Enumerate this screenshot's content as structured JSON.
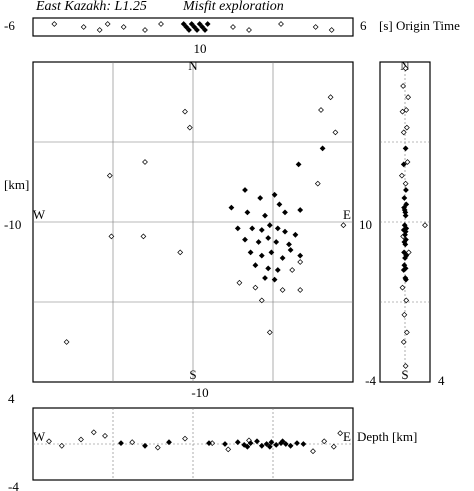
{
  "title": "East Kazakh: L1.25",
  "subtitle": "Misfit exploration",
  "chart_data": [
    {
      "type": "scatter",
      "xlabel": "[s] Origin Time",
      "xlim": [
        -6,
        6
      ],
      "xticks": [
        -6,
        6
      ],
      "series": [
        {
          "marker": "open",
          "color": "#000000",
          "x": [
            -5.2,
            -4.1,
            -3.5,
            -3.2,
            -2.6,
            -1.8,
            -1.2,
            1.5,
            2.1,
            3.3,
            4.6,
            5.2
          ]
        },
        {
          "marker": "filled",
          "color": "#000000",
          "x": [
            -0.35,
            -0.25,
            -0.15,
            -0.05,
            0.05,
            0.15,
            0.25,
            0.35,
            0.45,
            0.55
          ]
        }
      ]
    },
    {
      "type": "scatter",
      "ylabel": "[km]",
      "xlim": [
        -10,
        10
      ],
      "ylim": [
        -10,
        10
      ],
      "xticks": [
        -10,
        10
      ],
      "yticks": [
        10,
        -10
      ],
      "grid_x": [
        -5,
        0,
        5
      ],
      "grid_y": [
        -5,
        0,
        5
      ],
      "compass": [
        "N",
        "E",
        "S",
        "W"
      ],
      "series": [
        {
          "marker": "open",
          "color": "#000000",
          "x": [
            -0.5,
            -3,
            -5.2,
            -5.1,
            -3.1,
            -0.8,
            -7.9,
            -0.2,
            8.6,
            8.9,
            8,
            7.8,
            9.4,
            4.8,
            3.9,
            2.9,
            6.7,
            6.2,
            4.3,
            5.6,
            6.7
          ],
          "y": [
            6.9,
            3.75,
            2.9,
            -0.9,
            -0.9,
            -1.9,
            -7.5,
            5.9,
            7.8,
            5.6,
            7,
            2.4,
            -0.2,
            -6.9,
            -4.1,
            -3.8,
            -2.5,
            -3,
            -4.9,
            -4.25,
            -4.25
          ]
        },
        {
          "marker": "filled",
          "color": "#000000",
          "x": [
            8.1,
            6.6,
            3.25,
            4.2,
            5.1,
            5.4,
            2.4,
            3.4,
            4.5,
            5.75,
            6.7,
            2.8,
            3.7,
            4.3,
            4.8,
            5.3,
            5.75,
            6.4,
            3.25,
            4.1,
            4.7,
            5.2,
            6,
            3.6,
            4.3,
            4.9,
            5.6,
            3.9,
            4.7,
            5.3,
            6.1,
            5.1,
            4.5,
            6.7
          ],
          "y": [
            4.6,
            3.6,
            2,
            1.5,
            1.7,
            1.1,
            0.9,
            0.6,
            0.4,
            0.6,
            0.75,
            -0.4,
            -0.4,
            -0.5,
            -0.2,
            -0.4,
            -0.6,
            -0.8,
            -1.1,
            -1.25,
            -1,
            -1.25,
            -1.4,
            -1.9,
            -2.1,
            -1.9,
            -2.25,
            -2.7,
            -2.9,
            -3,
            -1.75,
            -3.6,
            -3.5,
            -2.1
          ]
        }
      ]
    },
    {
      "type": "scatter",
      "xlim": [
        -4,
        4
      ],
      "ylim": [
        -10,
        10
      ],
      "xticks": [
        -4,
        4
      ],
      "grid_x": [
        0
      ],
      "grid_y": [
        -5,
        0,
        5
      ],
      "compass": [
        "N",
        "S"
      ],
      "series": [
        {
          "marker": "open",
          "color": "#000000",
          "x": [
            0.1,
            -0.3,
            0.5,
            0.2,
            -0.4,
            0.3,
            -0.2,
            0.4,
            -0.5,
            0.1,
            3.2,
            -0.3,
            0.6,
            -0.4,
            0.2,
            -0.1,
            0.3,
            -0.2,
            0.1
          ],
          "y": [
            9.6,
            8.5,
            7.8,
            7,
            6.9,
            5.9,
            5.6,
            3.75,
            2.9,
            2.4,
            -0.2,
            -0.9,
            -1.9,
            -4.1,
            -4.9,
            -5.8,
            -6.9,
            -7.5,
            -9
          ]
        },
        {
          "marker": "filled",
          "color": "#000000",
          "x": [
            0.1,
            -0.2,
            0.15,
            -0.1,
            0.2,
            -0.15,
            0.05,
            0.1,
            -0.05,
            0.2,
            -0.2,
            0.1,
            0,
            0.15,
            -0.1,
            0.05,
            -0.15,
            0.2,
            0,
            -0.1,
            0.1,
            -0.2,
            0.05,
            0.15,
            -0.05
          ],
          "y": [
            4.6,
            3.6,
            2,
            1.5,
            1.1,
            0.9,
            0.6,
            0.4,
            -0.2,
            -0.4,
            -0.5,
            -0.6,
            -0.8,
            -1.1,
            -1.25,
            -1.4,
            -1.9,
            -2.1,
            -2.25,
            -2.7,
            -2.9,
            -3,
            -3.5,
            -3.6,
            0.75
          ]
        }
      ]
    },
    {
      "type": "scatter",
      "ylabel": "Depth [km]",
      "xlim": [
        -10,
        10
      ],
      "ylim": [
        -4,
        4
      ],
      "yticks": [
        4,
        -4
      ],
      "grid_x": [
        -5,
        0,
        5
      ],
      "grid_y": [
        0
      ],
      "compass": [
        "W",
        "E"
      ],
      "series": [
        {
          "marker": "open",
          "color": "#000000",
          "x": [
            -9,
            -8.2,
            -7,
            -6.2,
            -5.5,
            -3.8,
            -2.2,
            -0.5,
            1.2,
            2.2,
            3.5,
            7.5,
            8.2,
            8.8,
            9.2
          ],
          "y": [
            0.3,
            -0.2,
            0.5,
            1.3,
            0.9,
            0.2,
            -0.4,
            0.6,
            0.1,
            -0.6,
            0.4,
            -0.8,
            0.3,
            -0.3,
            1.2
          ]
        },
        {
          "marker": "filled",
          "color": "#000000",
          "x": [
            -4.5,
            -3,
            -1.5,
            1,
            2,
            2.8,
            3.2,
            3.6,
            4,
            4.3,
            4.6,
            4.9,
            5.2,
            5.5,
            5.8,
            6.1,
            6.5,
            6.9,
            3.4,
            4.8,
            5.6
          ],
          "y": [
            0.1,
            -0.2,
            0.2,
            0.1,
            0,
            0.2,
            -0.1,
            0.1,
            0.3,
            -0.2,
            0,
            0.2,
            -0.1,
            0.1,
            0,
            -0.2,
            0.1,
            0,
            -0.3,
            -0.3,
            0.3
          ]
        }
      ]
    }
  ]
}
